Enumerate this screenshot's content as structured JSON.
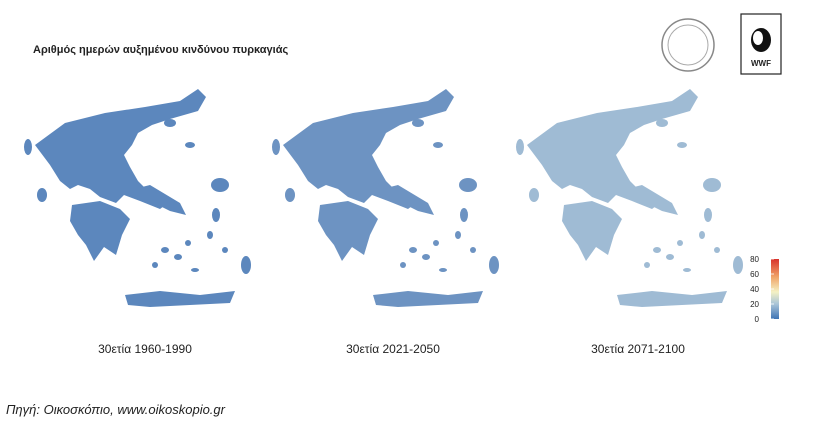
{
  "title": "Αριθμός ημερών αυξημένου κινδύνου πυρκαγιάς",
  "maps": [
    {
      "caption": "30ετία 1960-1990"
    },
    {
      "caption": "30ετία 2021-2050"
    },
    {
      "caption": "30ετία 2071-2100"
    }
  ],
  "legend": {
    "lim": [
      0,
      80
    ],
    "ticks": [
      0,
      20,
      40,
      60,
      80
    ]
  },
  "logo": "WWF",
  "source": "Πηγή: Οικοσκόπιο, www.oikoskopio.gr"
}
